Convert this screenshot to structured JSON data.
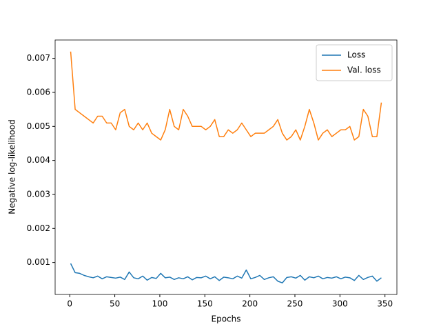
{
  "chart_data": {
    "type": "line",
    "xlabel": "Epochs",
    "ylabel": "Negative log-likelihood",
    "x": [
      1,
      6,
      11,
      16,
      21,
      26,
      31,
      36,
      41,
      46,
      51,
      56,
      61,
      66,
      71,
      76,
      81,
      86,
      91,
      96,
      101,
      106,
      111,
      116,
      121,
      126,
      131,
      136,
      141,
      146,
      151,
      156,
      161,
      166,
      171,
      176,
      181,
      186,
      191,
      196,
      201,
      206,
      211,
      216,
      221,
      226,
      231,
      236,
      241,
      246,
      251,
      256,
      261,
      266,
      271,
      276,
      281,
      286,
      291,
      296,
      301,
      306,
      311,
      316,
      321,
      326,
      331,
      336,
      341,
      346
    ],
    "series": [
      {
        "name": "Loss",
        "color": "#1f77b4",
        "values": [
          0.00097,
          0.0007,
          0.00068,
          0.00062,
          0.00058,
          0.00055,
          0.0006,
          0.00052,
          0.00058,
          0.00056,
          0.00054,
          0.00057,
          0.0005,
          0.00072,
          0.00055,
          0.00052,
          0.0006,
          0.00048,
          0.00056,
          0.00053,
          0.00068,
          0.00055,
          0.00057,
          0.0005,
          0.00055,
          0.00052,
          0.00058,
          0.00049,
          0.00056,
          0.00055,
          0.0006,
          0.00052,
          0.00058,
          0.00047,
          0.00057,
          0.00055,
          0.00052,
          0.0006,
          0.00054,
          0.00078,
          0.00052,
          0.00056,
          0.00062,
          0.0005,
          0.00055,
          0.00058,
          0.00045,
          0.0004,
          0.00056,
          0.00058,
          0.00054,
          0.00062,
          0.00048,
          0.00058,
          0.00055,
          0.0006,
          0.00052,
          0.00056,
          0.00054,
          0.00058,
          0.00052,
          0.00057,
          0.00055,
          0.00047,
          0.00062,
          0.0005,
          0.00056,
          0.0006,
          0.00045,
          0.00055
        ]
      },
      {
        "name": "Val. loss",
        "color": "#ff7f0e",
        "values": [
          0.0072,
          0.0055,
          0.0054,
          0.0053,
          0.0052,
          0.0051,
          0.0053,
          0.0053,
          0.0051,
          0.0051,
          0.0049,
          0.0054,
          0.0055,
          0.005,
          0.0049,
          0.0051,
          0.0049,
          0.0051,
          0.0048,
          0.0047,
          0.0046,
          0.0049,
          0.0055,
          0.005,
          0.0049,
          0.0055,
          0.0053,
          0.005,
          0.005,
          0.005,
          0.0049,
          0.005,
          0.0052,
          0.0047,
          0.0047,
          0.0049,
          0.0048,
          0.0049,
          0.0051,
          0.0049,
          0.0047,
          0.0048,
          0.0048,
          0.0048,
          0.0049,
          0.005,
          0.0052,
          0.0048,
          0.0046,
          0.0047,
          0.0049,
          0.0046,
          0.005,
          0.0055,
          0.0051,
          0.0046,
          0.0048,
          0.0049,
          0.0047,
          0.0048,
          0.0049,
          0.0049,
          0.005,
          0.0046,
          0.0047,
          0.0055,
          0.0053,
          0.0047,
          0.0047,
          0.0057
        ]
      }
    ],
    "xlim": [
      -16.25,
      363.25
    ],
    "xticks": [
      0,
      50,
      100,
      150,
      200,
      250,
      300,
      350
    ],
    "ylim": [
      6e-05,
      0.00754
    ],
    "yticks": [
      0.001,
      0.002,
      0.003,
      0.004,
      0.005,
      0.006,
      0.007
    ],
    "legend": "upper right"
  }
}
